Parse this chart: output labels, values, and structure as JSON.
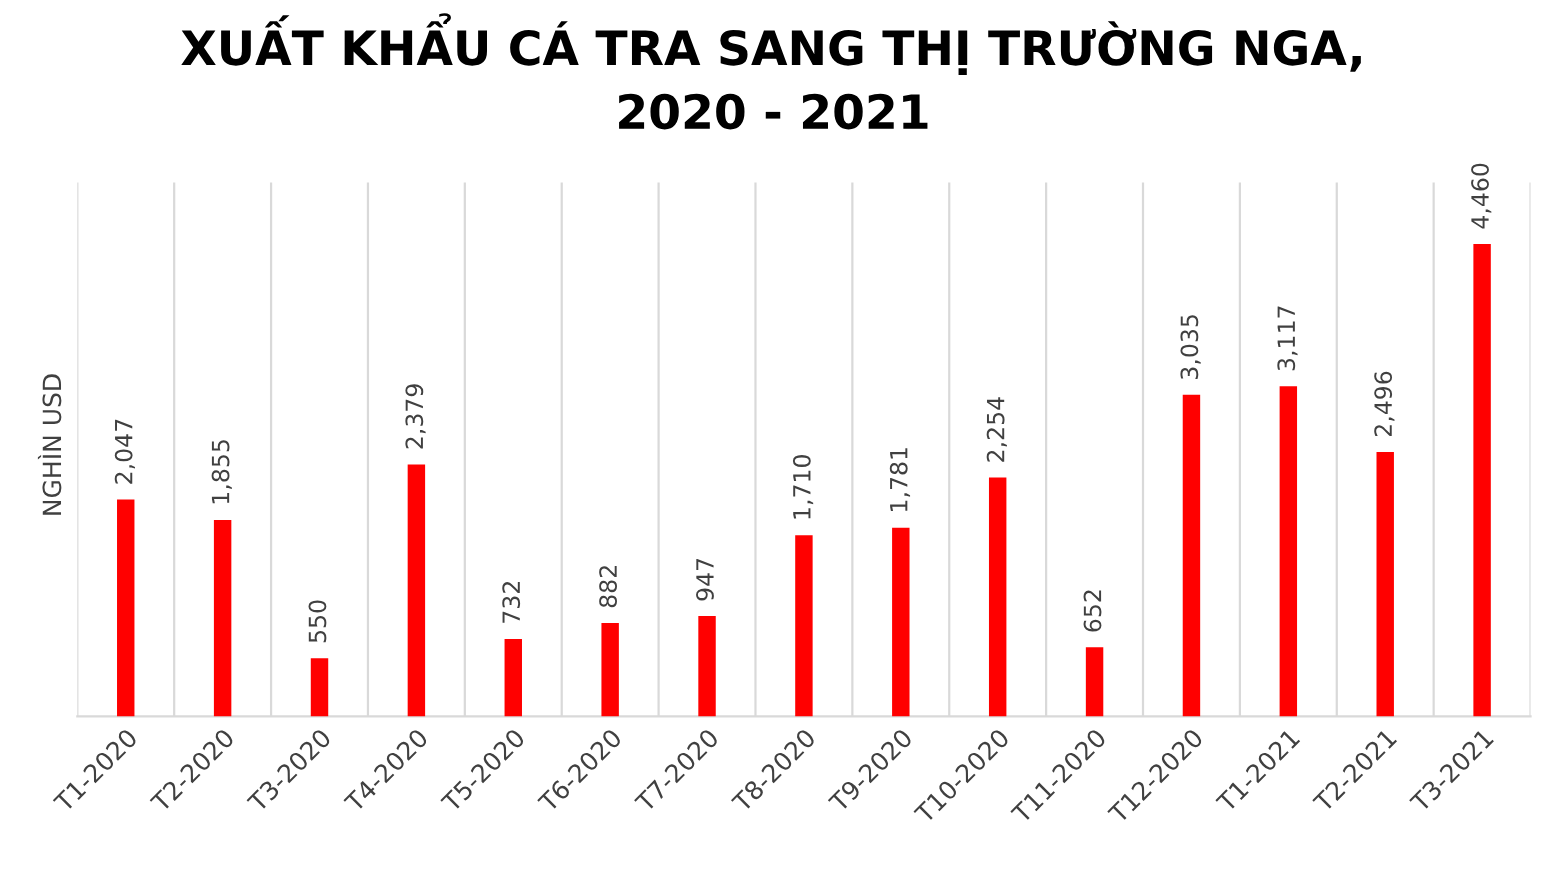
{
  "chart_data": {
    "type": "bar",
    "title": "XUẤT KHẨU CÁ TRA SANG THỊ TRƯỜNG NGA,\n2020 - 2021",
    "ylabel": "NGHÌN USD",
    "categories": [
      "T1-2020",
      "T2-2020",
      "T3-2020",
      "T4-2020",
      "T5-2020",
      "T6-2020",
      "T7-2020",
      "T8-2020",
      "T9-2020",
      "T10-2020",
      "T11-2020",
      "T12-2020",
      "T1-2021",
      "T2-2021",
      "T3-2021"
    ],
    "values": [
      2047,
      1855,
      550,
      2379,
      732,
      882,
      947,
      1710,
      1781,
      2254,
      652,
      3035,
      3117,
      2496,
      4460
    ],
    "value_labels": [
      "2,047",
      "1,855",
      "550",
      "2,379",
      "732",
      "882",
      "947",
      "1,710",
      "1,781",
      "2,254",
      "652",
      "3,035",
      "3,117",
      "2,496",
      "4,460"
    ],
    "color": "#ff0000",
    "grid": "x",
    "tick_labels": "x"
  }
}
